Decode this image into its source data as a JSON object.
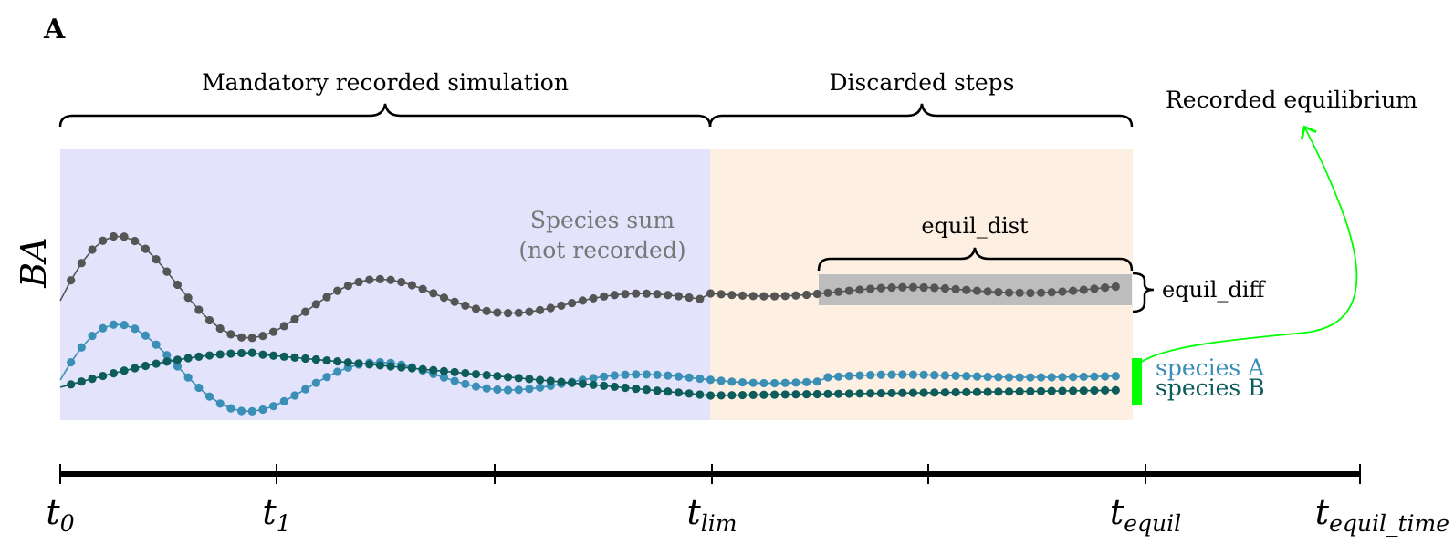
{
  "panel_label": "A",
  "y_axis_label": "BA",
  "regions": {
    "mandatory_label": "Mandatory recorded simulation",
    "discarded_label": "Discarded steps",
    "recorded_equilibrium_label": "Recorded equilibrium"
  },
  "annotations": {
    "species_sum_line1": "Species sum",
    "species_sum_line2": "(not recorded)",
    "equil_dist_label": "equil_dist",
    "equil_diff_label": "equil_diff"
  },
  "legend": {
    "species_a": "species A",
    "species_b": "species B"
  },
  "timeline": {
    "ticks": [
      {
        "base": "t",
        "sub": "0"
      },
      {
        "base": "t",
        "sub": "1"
      },
      {
        "base": "",
        "sub": ""
      },
      {
        "base": "t",
        "sub": "lim"
      },
      {
        "base": "",
        "sub": ""
      },
      {
        "base": "t",
        "sub": "equil"
      },
      {
        "base": "t",
        "sub": "equil_time"
      }
    ]
  },
  "colors": {
    "mandatory_bg": "#e3e3fb",
    "discarded_bg": "#fdefe1",
    "sum_line": "#555555",
    "species_a": "#3a8fb7",
    "species_b": "#0d5c5c",
    "highlight": "#00ff00",
    "equil_band": "#bdbdbd"
  }
}
